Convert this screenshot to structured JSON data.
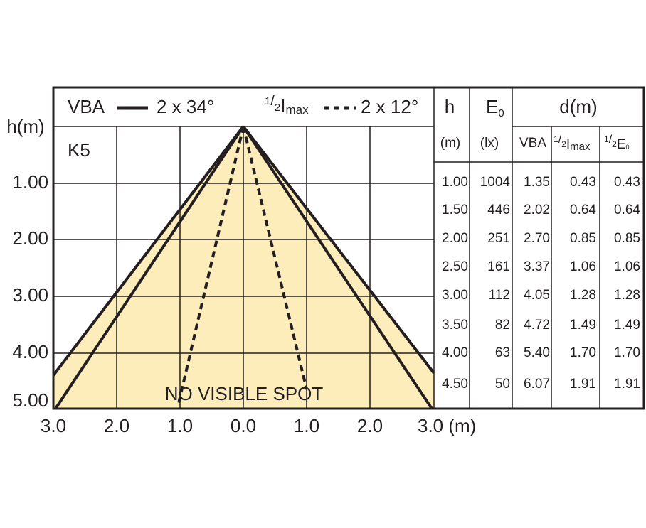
{
  "legend": {
    "vba_label": "VBA",
    "vba_angle": "2 x 34°",
    "imax_num": "1",
    "imax_den": "2",
    "imax_letter": "I",
    "imax_sub": "max",
    "imax_angle": "2 x 12°"
  },
  "label": "K5",
  "note": "NO VISIBLE SPOT",
  "y_axis": {
    "title": "h(m)",
    "ticks": [
      "1.00",
      "2.00",
      "3.00",
      "4.00",
      "5.00"
    ]
  },
  "x_axis": {
    "ticks": [
      "3.0",
      "2.0",
      "1.0",
      "0.0",
      "1.0",
      "2.0",
      "3.0 (m)"
    ]
  },
  "table": {
    "header": {
      "h": "h",
      "e_letter": "E",
      "e_sub": "0",
      "d": "d(m)"
    },
    "subheader": {
      "h_unit": "(m)",
      "e_unit": "(lx)",
      "vba": "VBA",
      "imax_num": "1",
      "imax_den": "2",
      "imax_letter": "I",
      "imax_sub": "max",
      "e0_num": "1",
      "e0_den": "2",
      "e0_letter": "E",
      "e0_sub": "0"
    },
    "rows": [
      [
        "1.00",
        "1004",
        "1.35",
        "0.43",
        "0.43"
      ],
      [
        "1.50",
        "446",
        "2.02",
        "0.64",
        "0.64"
      ],
      [
        "2.00",
        "251",
        "2.70",
        "0.85",
        "0.85"
      ],
      [
        "2.50",
        "161",
        "3.37",
        "1.06",
        "1.06"
      ],
      [
        "3.00",
        "112",
        "4.05",
        "1.28",
        "1.28"
      ],
      [
        "3.50",
        "82",
        "4.72",
        "1.49",
        "1.49"
      ],
      [
        "4.00",
        "63",
        "5.40",
        "1.70",
        "1.70"
      ],
      [
        "4.50",
        "50",
        "6.07",
        "1.91",
        "1.91"
      ]
    ]
  }
}
